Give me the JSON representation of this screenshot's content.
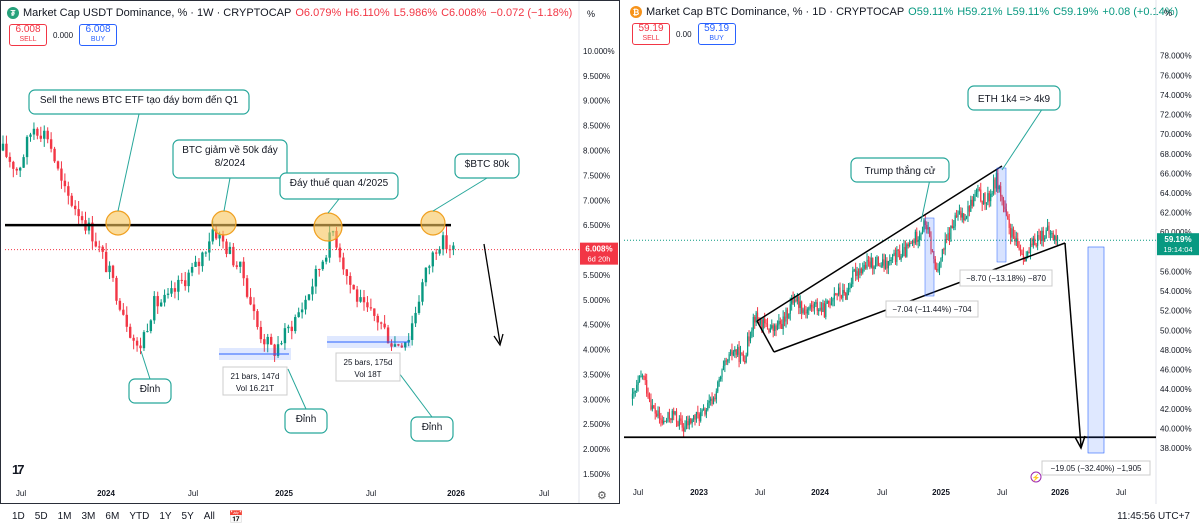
{
  "left_chart": {
    "title": "Market Cap USDT Dominance, % · 1W · CRYPTOCAP",
    "ohlc": {
      "o": "O6.079%",
      "h": "H6.110%",
      "l": "L5.986%",
      "c": "C6.008%",
      "chg": "−0.072 (−1.18%)"
    },
    "sell_price": "6.008",
    "sell_label": "SELL",
    "spread": "0.000",
    "buy_price": "6.008",
    "buy_label": "BUY",
    "pct_sign": "%",
    "price_tag": "6.008%",
    "countdown": "6d 20h",
    "icon": "tether-icon",
    "colors": {
      "up": "#089981",
      "down": "#f23645",
      "annotation": "#26a69a",
      "highlight": "#f7c45a"
    }
  },
  "right_chart": {
    "title": "Market Cap BTC Dominance, % · 1D · CRYPTOCAP",
    "ohlc": {
      "o": "O59.11%",
      "h": "H59.21%",
      "l": "L59.11%",
      "c": "C59.19%",
      "chg": "+0.08 (+0.14%)"
    },
    "sell_price": "59.19",
    "sell_label": "SELL",
    "spread": "0.00",
    "buy_price": "59.19",
    "buy_label": "BUY",
    "pct_sign": "%",
    "price_tag": "59.19%",
    "countdown": "19:14:04",
    "icon": "bitcoin-icon"
  },
  "chart_data": [
    {
      "type": "candlestick",
      "title": "Market Cap USDT Dominance, % · 1W · CRYPTOCAP",
      "ylim": [
        1.5,
        10.2
      ],
      "y_ticks": [
        "10.000%",
        "9.500%",
        "9.000%",
        "8.500%",
        "8.000%",
        "7.500%",
        "7.000%",
        "6.500%",
        "6.000%",
        "5.500%",
        "5.000%",
        "4.500%",
        "4.000%",
        "3.500%",
        "3.000%",
        "2.500%",
        "2.000%",
        "1.500%"
      ],
      "x_ticks": [
        "Jul",
        "2024",
        "Jul",
        "2025",
        "Jul",
        "2026",
        "Jul"
      ],
      "series_points": [
        [
          "2023-06",
          8.0
        ],
        [
          "2023-07",
          7.6
        ],
        [
          "2023-08",
          8.5
        ],
        [
          "2023-09",
          8.3
        ],
        [
          "2023-10",
          7.2
        ],
        [
          "2023-11",
          6.8
        ],
        [
          "2023-12",
          6.3
        ],
        [
          "2024-01",
          5.6
        ],
        [
          "2024-02",
          4.8
        ],
        [
          "2024-03",
          3.95
        ],
        [
          "2024-04",
          4.9
        ],
        [
          "2024-05",
          5.0
        ],
        [
          "2024-06",
          5.4
        ],
        [
          "2024-07",
          5.7
        ],
        [
          "2024-08",
          6.45
        ],
        [
          "2024-09",
          6.0
        ],
        [
          "2024-10",
          5.5
        ],
        [
          "2024-11",
          4.4
        ],
        [
          "2024-12",
          3.95
        ],
        [
          "2025-01",
          4.4
        ],
        [
          "2025-02",
          4.9
        ],
        [
          "2025-03",
          5.6
        ],
        [
          "2025-04",
          6.4
        ],
        [
          "2025-05",
          5.4
        ],
        [
          "2025-06",
          4.8
        ],
        [
          "2025-07",
          4.6
        ],
        [
          "2025-08",
          4.1
        ],
        [
          "2025-09",
          4.25
        ],
        [
          "2025-10",
          5.4
        ],
        [
          "2025-11",
          6.2
        ],
        [
          "2025-12",
          6.008
        ]
      ],
      "horizontal_level": 6.5,
      "annotations": [
        "Sell the news BTC ETF tạo đáy bơm đến Q1",
        "BTC giảm về 50k đáy 8/2024",
        "Đáy thuế quan 4/2025",
        "$BTC 80k",
        "Đỉnh",
        "Đỉnh",
        "Đỉnh"
      ],
      "ranges": [
        {
          "label1": "21 bars, 147d",
          "label2": "Vol 16.21T"
        },
        {
          "label1": "25 bars, 175d",
          "label2": "Vol 18T"
        }
      ]
    },
    {
      "type": "candlestick",
      "title": "Market Cap BTC Dominance, % · 1D · CRYPTOCAP",
      "ylim": [
        37.6,
        79.8
      ],
      "y_ticks": [
        "78.000%",
        "76.000%",
        "74.000%",
        "72.000%",
        "70.000%",
        "68.000%",
        "66.000%",
        "64.000%",
        "62.000%",
        "60.000%",
        "58.000%",
        "56.000%",
        "54.000%",
        "52.000%",
        "50.000%",
        "48.000%",
        "46.000%",
        "44.000%",
        "42.000%",
        "40.000%",
        "38.000%"
      ],
      "x_ticks": [
        "Jul",
        "2023",
        "Jul",
        "2024",
        "Jul",
        "2025",
        "Jul",
        "2026",
        "Jul"
      ],
      "series_points": [
        [
          "2022-06",
          43.0
        ],
        [
          "2022-07",
          45.5
        ],
        [
          "2022-08",
          42.0
        ],
        [
          "2022-09",
          40.5
        ],
        [
          "2022-10",
          41.5
        ],
        [
          "2022-11",
          40.0
        ],
        [
          "2022-12",
          41.0
        ],
        [
          "2023-01",
          41.5
        ],
        [
          "2023-02",
          43.0
        ],
        [
          "2023-03",
          46.0
        ],
        [
          "2023-04",
          48.0
        ],
        [
          "2023-05",
          47.0
        ],
        [
          "2023-06",
          51.5
        ],
        [
          "2023-07",
          50.5
        ],
        [
          "2023-08",
          50.0
        ],
        [
          "2023-09",
          51.0
        ],
        [
          "2023-10",
          53.5
        ],
        [
          "2023-11",
          52.0
        ],
        [
          "2023-12",
          52.5
        ],
        [
          "2024-01",
          52.0
        ],
        [
          "2024-02",
          54.0
        ],
        [
          "2024-03",
          53.5
        ],
        [
          "2024-04",
          56.0
        ],
        [
          "2024-05",
          56.5
        ],
        [
          "2024-06",
          57.0
        ],
        [
          "2024-07",
          56.5
        ],
        [
          "2024-08",
          57.5
        ],
        [
          "2024-09",
          58.0
        ],
        [
          "2024-10",
          59.5
        ],
        [
          "2024-11",
          61.0
        ],
        [
          "2024-12",
          56.0
        ],
        [
          "2025-01",
          59.0
        ],
        [
          "2025-02",
          61.5
        ],
        [
          "2025-03",
          62.0
        ],
        [
          "2025-04",
          64.0
        ],
        [
          "2025-05",
          63.0
        ],
        [
          "2025-06",
          65.5
        ],
        [
          "2025-07",
          61.0
        ],
        [
          "2025-08",
          58.5
        ],
        [
          "2025-09",
          57.5
        ],
        [
          "2025-10",
          59.5
        ],
        [
          "2025-11",
          60.0
        ],
        [
          "2025-12",
          59.19
        ]
      ],
      "horizontal_level": 39.1,
      "annotations": [
        "Trump thắng cử",
        "ETH 1k4 => 4k9"
      ],
      "ranges": [
        {
          "label1": "−8.70 (−13.18%) −870"
        },
        {
          "label1": "−7.04 (−11.44%) −704"
        },
        {
          "label1": "−19.05 (−32.40%) −1,905"
        }
      ]
    }
  ],
  "bottom": {
    "ranges": [
      "1D",
      "5D",
      "1M",
      "3M",
      "6M",
      "YTD",
      "1Y",
      "5Y",
      "All"
    ],
    "clock": "11:45:56 UTC+7"
  }
}
